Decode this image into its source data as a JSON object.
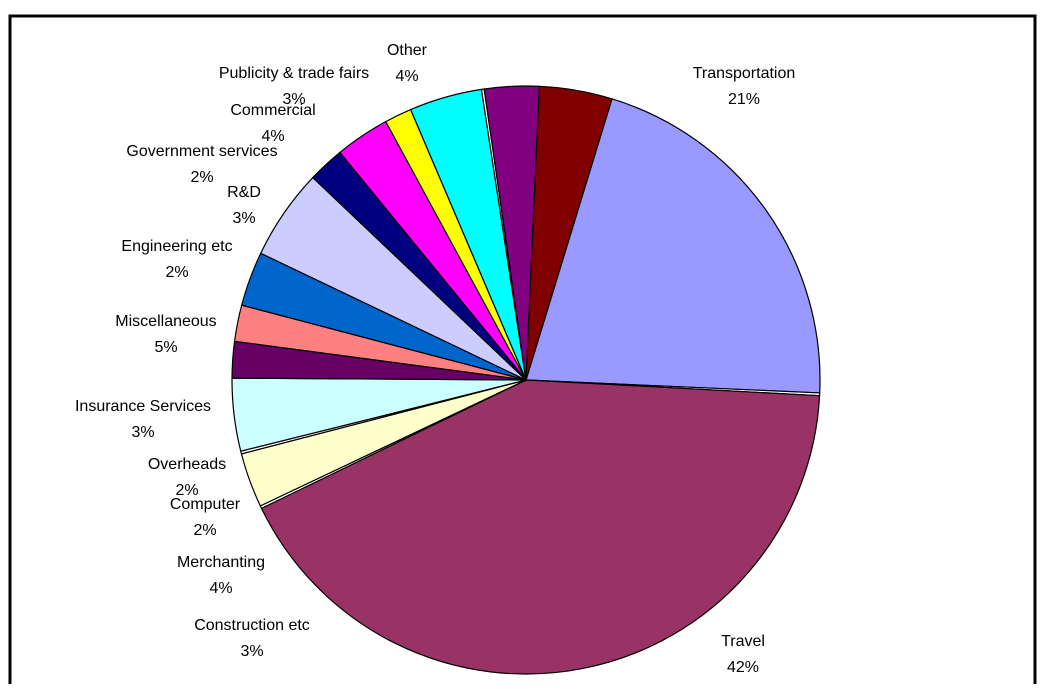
{
  "chart_data": {
    "type": "pie",
    "title": "",
    "slices": [
      {
        "label": "Transportation",
        "percent_label": "21%",
        "value": 21,
        "color": "#9999ff"
      },
      {
        "label": "Thin sliver",
        "percent_label": "",
        "value": 0.15,
        "color": "#ffffff"
      },
      {
        "label": "Travel",
        "percent_label": "42%",
        "value": 42,
        "color": "#993366"
      },
      {
        "label": "Thin sliver",
        "percent_label": "",
        "value": 0.15,
        "color": "#ffffff"
      },
      {
        "label": "Construction etc",
        "percent_label": "3%",
        "value": 3,
        "color": "#ffffcc"
      },
      {
        "label": "Thin sliver",
        "percent_label": "",
        "value": 0.15,
        "color": "#ffffff"
      },
      {
        "label": "Merchanting",
        "percent_label": "4%",
        "value": 4,
        "color": "#ccffff"
      },
      {
        "label": "Computer",
        "percent_label": "2%",
        "value": 2,
        "color": "#660066"
      },
      {
        "label": "Overheads",
        "percent_label": "2%",
        "value": 2,
        "color": "#ff8080"
      },
      {
        "label": "Insurance Services",
        "percent_label": "3%",
        "value": 3,
        "color": "#0066cc"
      },
      {
        "label": "Miscellaneous",
        "percent_label": "5%",
        "value": 5,
        "color": "#ccccff"
      },
      {
        "label": "Engineering etc",
        "percent_label": "2%",
        "value": 2,
        "color": "#000080"
      },
      {
        "label": "R&D",
        "percent_label": "3%",
        "value": 3,
        "color": "#ff00ff"
      },
      {
        "label": "Government services",
        "percent_label": "2%",
        "value": 1.5,
        "color": "#ffff00"
      },
      {
        "label": "Commercial",
        "percent_label": "4%",
        "value": 4,
        "color": "#00ffff"
      },
      {
        "label": "Thin sliver",
        "percent_label": "",
        "value": 0.15,
        "color": "#ffffff"
      },
      {
        "label": "Publicity & trade fairs",
        "percent_label": "3%",
        "value": 3,
        "color": "#800080"
      },
      {
        "label": "Other",
        "percent_label": "4%",
        "value": 4,
        "color": "#800000"
      }
    ]
  }
}
